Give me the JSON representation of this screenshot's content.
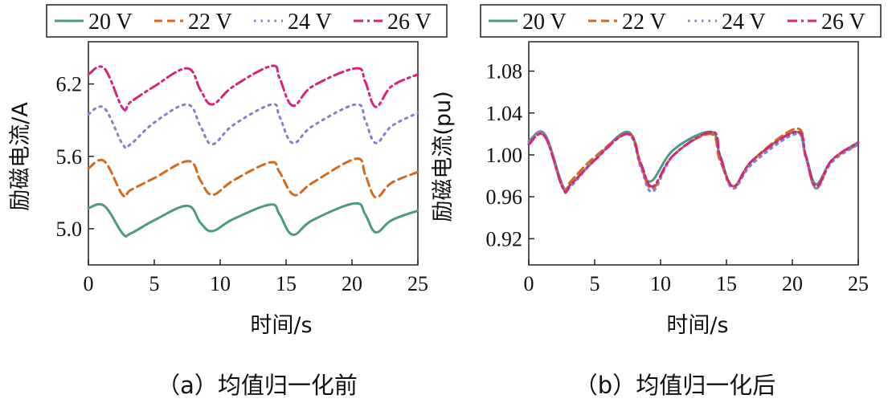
{
  "colors": {
    "s20": "#4e9a80",
    "s22": "#d2691e",
    "s24": "#8181d2",
    "s26": "#d6247a"
  },
  "chart_data": [
    {
      "id": "a",
      "type": "line",
      "caption": "（a）均值归一化前",
      "xlabel": "时间/s",
      "ylabel": "励磁电流/A",
      "xlim": [
        0,
        25
      ],
      "ylim": [
        4.7,
        6.55
      ],
      "xticks": [
        0,
        5,
        10,
        15,
        20,
        25
      ],
      "yticks": [
        5.0,
        5.6,
        6.2
      ],
      "ytick_labels": [
        "5.0",
        "5.6",
        "6.2"
      ],
      "legend": "top",
      "series": [
        {
          "name": "20 V",
          "style": "solid",
          "color": "#4e9a80",
          "x": [
            0,
            1.2,
            2.6,
            3.2,
            5.0,
            7.5,
            8.5,
            9.4,
            11,
            13.8,
            14.5,
            15.5,
            17,
            20.2,
            21,
            21.8,
            23,
            25
          ],
          "y": [
            5.17,
            5.19,
            4.96,
            4.96,
            5.07,
            5.19,
            5.05,
            4.98,
            5.08,
            5.2,
            5.12,
            4.95,
            5.07,
            5.21,
            5.12,
            4.97,
            5.07,
            5.15
          ]
        },
        {
          "name": "22 V",
          "style": "dashed",
          "color": "#d2691e",
          "x": [
            0,
            1.2,
            2.6,
            3.2,
            5.0,
            7.6,
            8.5,
            9.4,
            11,
            13.8,
            14.5,
            15.6,
            17,
            20.3,
            21,
            21.8,
            23,
            25
          ],
          "y": [
            5.5,
            5.56,
            5.28,
            5.32,
            5.42,
            5.56,
            5.4,
            5.28,
            5.4,
            5.55,
            5.47,
            5.28,
            5.38,
            5.58,
            5.45,
            5.26,
            5.38,
            5.47
          ]
        },
        {
          "name": "24 V",
          "style": "dotted",
          "color": "#8181d2",
          "x": [
            0,
            1.2,
            2.6,
            3.2,
            5.0,
            7.5,
            8.5,
            9.4,
            11,
            13.9,
            14.5,
            15.5,
            17,
            20.3,
            21,
            21.8,
            23,
            25
          ],
          "y": [
            5.95,
            6.0,
            5.7,
            5.7,
            5.88,
            6.03,
            5.85,
            5.7,
            5.86,
            6.03,
            5.93,
            5.71,
            5.85,
            6.03,
            5.9,
            5.71,
            5.85,
            5.96
          ]
        },
        {
          "name": "26 V",
          "style": "dashdot",
          "color": "#d6247a",
          "x": [
            0,
            1.2,
            2.6,
            3.2,
            5.0,
            7.5,
            8.5,
            9.4,
            11,
            13.9,
            14.5,
            15.5,
            17,
            20.3,
            21,
            21.8,
            23,
            25
          ],
          "y": [
            6.28,
            6.33,
            6.0,
            6.05,
            6.18,
            6.33,
            6.15,
            6.03,
            6.18,
            6.35,
            6.25,
            6.02,
            6.18,
            6.33,
            6.22,
            6.01,
            6.18,
            6.28
          ]
        }
      ]
    },
    {
      "id": "b",
      "type": "line",
      "caption": "（b）均值归一化后",
      "xlabel": "时间/s",
      "ylabel": "励磁电流(pu)",
      "xlim": [
        0,
        25
      ],
      "ylim": [
        0.895,
        1.108
      ],
      "xticks": [
        0,
        5,
        10,
        15,
        20,
        25
      ],
      "yticks": [
        0.92,
        0.96,
        1.0,
        1.04,
        1.08
      ],
      "ytick_labels": [
        "0.92",
        "0.96",
        "1.00",
        "1.04",
        "1.08"
      ],
      "legend": "top",
      "series": [
        {
          "name": "20 V",
          "style": "solid",
          "color": "#4e9a80",
          "x": [
            0,
            1.2,
            2.6,
            3.2,
            5.0,
            7.5,
            8.5,
            9.3,
            11,
            13.8,
            14.5,
            15.5,
            17,
            20.2,
            21,
            21.8,
            23,
            25
          ],
          "y": [
            1.013,
            1.02,
            0.97,
            0.972,
            0.995,
            1.022,
            0.99,
            0.975,
            1.005,
            1.022,
            1.0,
            0.97,
            0.995,
            1.022,
            1.0,
            0.972,
            0.995,
            1.012
          ]
        },
        {
          "name": "22 V",
          "style": "dashed",
          "color": "#d2691e",
          "x": [
            0,
            1.2,
            2.6,
            3.2,
            5.0,
            7.6,
            8.5,
            9.4,
            11,
            13.8,
            14.5,
            15.6,
            17,
            20.3,
            21,
            21.8,
            23,
            25
          ],
          "y": [
            1.01,
            1.018,
            0.968,
            0.975,
            0.998,
            1.02,
            0.99,
            0.968,
            1.0,
            1.02,
            0.995,
            0.97,
            0.995,
            1.025,
            1.0,
            0.968,
            0.995,
            1.01
          ]
        },
        {
          "name": "24 V",
          "style": "dotted",
          "color": "#8181d2",
          "x": [
            0,
            1.2,
            2.6,
            3.2,
            5.0,
            7.5,
            8.5,
            9.4,
            11,
            13.9,
            14.5,
            15.5,
            17,
            20.3,
            21,
            21.8,
            23,
            25
          ],
          "y": [
            1.012,
            1.02,
            0.968,
            0.97,
            0.995,
            1.02,
            0.988,
            0.965,
            1.0,
            1.022,
            0.998,
            0.968,
            0.992,
            1.02,
            0.998,
            0.968,
            0.993,
            1.01
          ]
        },
        {
          "name": "26 V",
          "style": "dashdot",
          "color": "#d6247a",
          "x": [
            0,
            1.2,
            2.6,
            3.2,
            5.0,
            7.5,
            8.5,
            9.4,
            11,
            13.9,
            14.5,
            15.5,
            17,
            20.3,
            21,
            21.8,
            23,
            25
          ],
          "y": [
            1.01,
            1.018,
            0.968,
            0.972,
            0.995,
            1.02,
            0.992,
            0.97,
            1.0,
            1.022,
            1.0,
            0.97,
            0.995,
            1.022,
            1.0,
            0.97,
            0.995,
            1.012
          ]
        }
      ]
    }
  ]
}
